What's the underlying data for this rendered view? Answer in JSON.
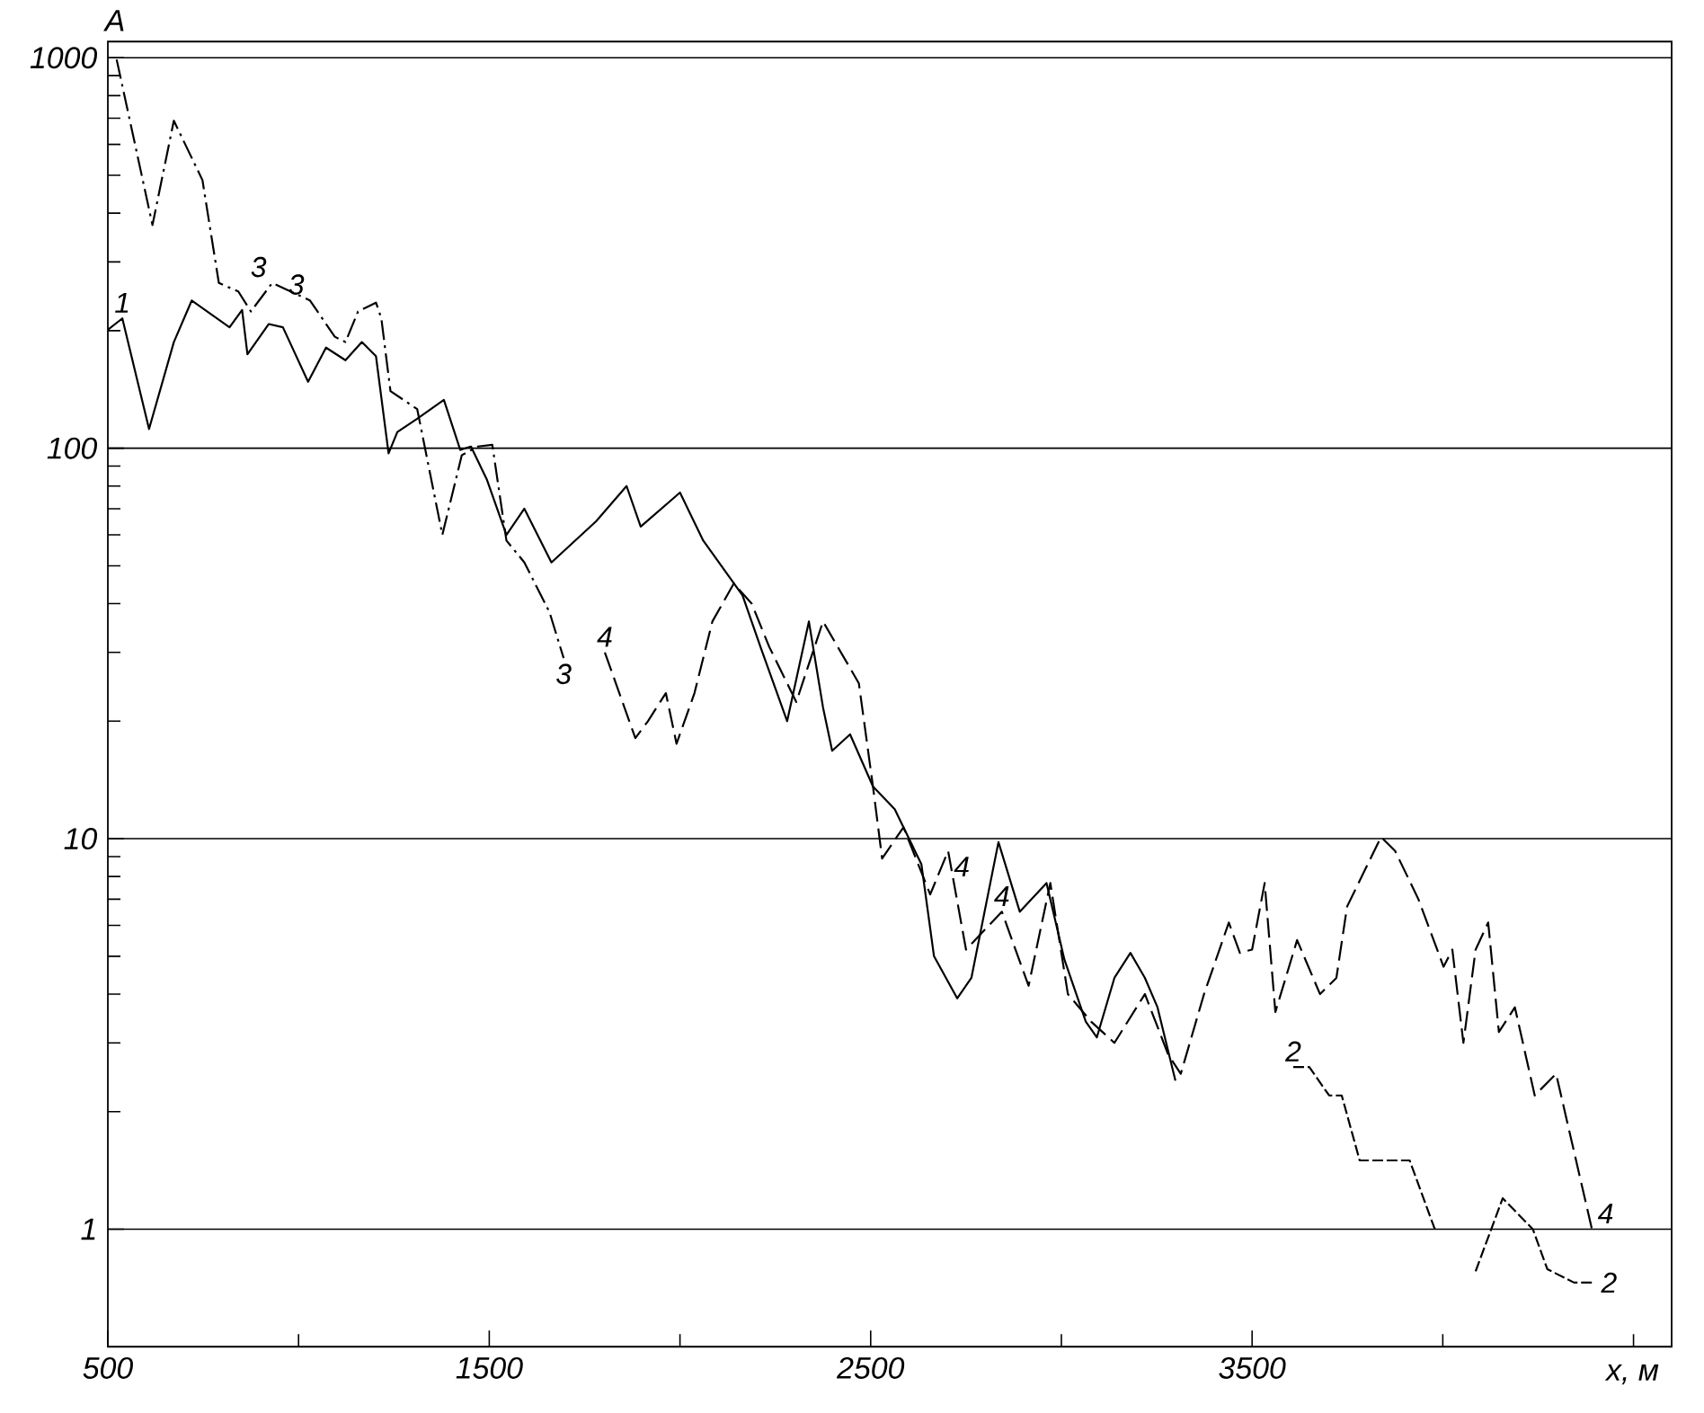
{
  "chart_data": {
    "type": "line",
    "xlabel": "x, м",
    "ylabel": "A",
    "log": true,
    "grid": "y",
    "marker": "none",
    "xlim": [
      500,
      4600
    ],
    "ylim": [
      0.5,
      1100
    ],
    "xticks": [
      500,
      {
        "value": 1000,
        "label": null
      },
      1500,
      {
        "value": 2000,
        "label": null
      },
      2500,
      {
        "value": 3000,
        "label": null
      },
      3500,
      {
        "value": 4000,
        "label": null
      },
      {
        "value": 4500,
        "label": null
      }
    ],
    "yticks": [
      1,
      {
        "value": 2,
        "label": null
      },
      {
        "value": 3,
        "label": null
      },
      {
        "value": 4,
        "label": null
      },
      {
        "value": 5,
        "label": null
      },
      {
        "value": 6,
        "label": null
      },
      {
        "value": 7,
        "label": null
      },
      {
        "value": 8,
        "label": null
      },
      {
        "value": 9,
        "label": null
      },
      10,
      {
        "value": 20,
        "label": null
      },
      {
        "value": 30,
        "label": null
      },
      {
        "value": 40,
        "label": null
      },
      {
        "value": 50,
        "label": null
      },
      {
        "value": 60,
        "label": null
      },
      {
        "value": 70,
        "label": null
      },
      {
        "value": 80,
        "label": null
      },
      {
        "value": 90,
        "label": null
      },
      100,
      {
        "value": 200,
        "label": null
      },
      {
        "value": 300,
        "label": null
      },
      {
        "value": 400,
        "label": null
      },
      {
        "value": 500,
        "label": null
      },
      {
        "value": 600,
        "label": null
      },
      {
        "value": 700,
        "label": null
      },
      {
        "value": 800,
        "label": null
      },
      {
        "value": 900,
        "label": null
      },
      1000
    ],
    "series": [
      {
        "color": "#000000",
        "line_style": "solid",
        "x": [
          500,
          538,
          608,
          673,
          720,
          819,
          852,
          866,
          922,
          959,
          1025,
          1072,
          1123,
          1166,
          1203,
          1236,
          1259,
          1311,
          1381,
          1424,
          1452,
          1494,
          1545,
          1592,
          1663,
          1780,
          1860,
          1897,
          2000,
          2061,
          2164,
          2211,
          2281,
          2338,
          2375,
          2399,
          2446,
          2506,
          2563,
          2633,
          2666,
          2727,
          2764,
          2835,
          2891,
          2961,
          3008,
          3064,
          3093,
          3139,
          3181,
          3219,
          3252,
          3299
        ],
        "values": [
          201,
          215,
          112,
          187,
          239,
          204,
          226,
          174,
          208,
          204,
          148,
          181,
          168,
          187,
          172,
          97,
          110,
          119,
          133,
          99,
          101,
          83,
          60,
          70,
          51,
          65,
          80,
          63,
          77,
          58,
          42,
          31,
          20,
          36,
          21.7,
          16.8,
          18.5,
          13.6,
          11.9,
          8.6,
          5.0,
          3.9,
          4.4,
          9.8,
          6.5,
          7.7,
          4.9,
          3.4,
          3.1,
          4.4,
          5.1,
          4.4,
          3.7,
          2.4
        ]
      },
      {
        "color": "#000000",
        "line_style": "dashed",
        "x": [
          3608,
          3650,
          3702,
          3735,
          3782,
          3814,
          3913,
          3979,
          4030,
          4086,
          4157,
          4236,
          4274,
          4344,
          4400
        ],
        "values": [
          2.6,
          2.6,
          2.2,
          2.2,
          1.5,
          1.5,
          1.5,
          1.0,
          null,
          0.78,
          1.2,
          1.0,
          0.79,
          0.73,
          0.73
        ]
      },
      {
        "color": "#000000",
        "line_style": "dashdotted",
        "x": [
          523,
          617,
          673,
          748,
          791,
          842,
          875,
          931,
          1030,
          1095,
          1123,
          1156,
          1203,
          1217,
          1241,
          1311,
          1377,
          1428,
          1470,
          1508,
          1545,
          1592,
          1658,
          1695
        ],
        "values": [
          990,
          373,
          690,
          486,
          265,
          252,
          224,
          265,
          239,
          193,
          187,
          224,
          236,
          215,
          140,
          126,
          60,
          96,
          101,
          102,
          58,
          51,
          38,
          29
        ]
      },
      {
        "color": "#000000",
        "line_style": "dashed",
        "x": [
          1803,
          1883,
          1916,
          1963,
          1991,
          2038,
          2085,
          2141,
          2188,
          2234,
          2305,
          2375,
          2469,
          2506,
          2530,
          2586,
          2656,
          2703,
          2750,
          2844,
          2914,
          2971,
          3017,
          3078,
          3139,
          3219,
          3280,
          3313,
          3374,
          3439,
          3468,
          3500,
          3533,
          3561,
          3618,
          3678,
          3721,
          3749,
          3838,
          3875,
          3936,
          4002,
          4025,
          4054,
          4086,
          4119,
          4147,
          4189,
          4241,
          4297,
          4391
        ],
        "values": [
          30,
          18.1,
          20,
          23.6,
          17.5,
          23.6,
          36,
          45,
          40,
          31,
          22.4,
          36,
          25,
          13.6,
          8.9,
          10.7,
          7.2,
          9.3,
          5.2,
          6.5,
          4.2,
          7.7,
          4.0,
          3.4,
          3.0,
          4.0,
          2.8,
          2.5,
          4.0,
          6.1,
          5.1,
          5.2,
          7.7,
          3.6,
          5.5,
          4.0,
          4.4,
          6.7,
          10.1,
          9.3,
          7.0,
          4.7,
          5.2,
          3.0,
          5.2,
          6.1,
          3.2,
          3.7,
          2.2,
          2.5,
          1.0
        ]
      }
    ],
    "annotations": [
      {
        "text": "1",
        "x": 538,
        "y": 215
      },
      {
        "text": "3",
        "x": 931,
        "y": 265
      },
      {
        "text": "3",
        "x": 1030,
        "y": 239
      },
      {
        "text": "3",
        "x": 1695,
        "y": 29
      },
      {
        "text": "4",
        "x": 1803,
        "y": 30
      },
      {
        "text": "4",
        "x": 2703,
        "y": 9.3
      },
      {
        "text": "4",
        "x": 2844,
        "y": 6.5
      },
      {
        "text": "4",
        "x": 4391,
        "y": 1.0
      },
      {
        "text": "2",
        "x": 3608,
        "y": 2.6
      },
      {
        "text": "2",
        "x": 4400,
        "y": 0.73
      }
    ]
  }
}
